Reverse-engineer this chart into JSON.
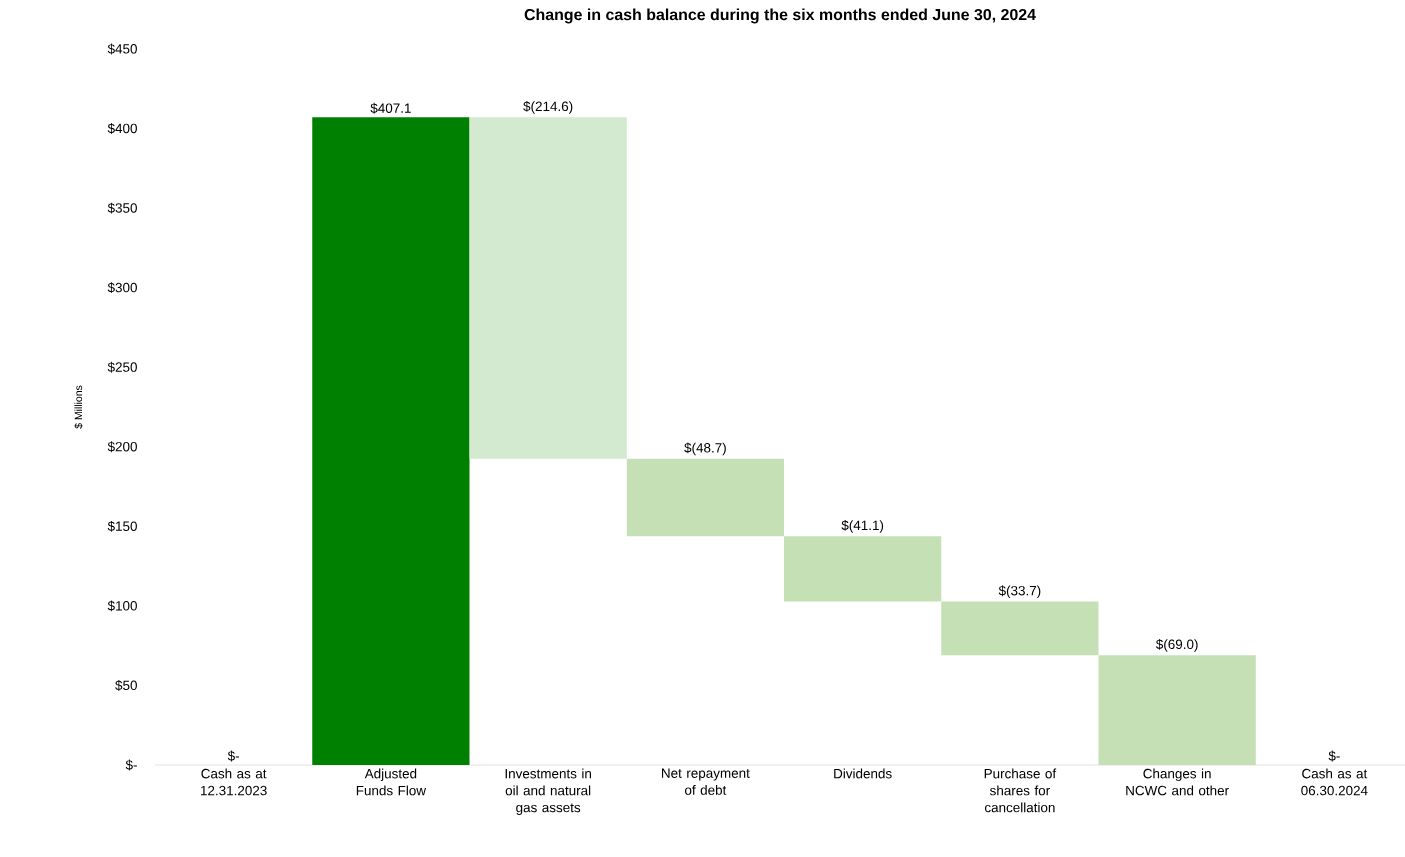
{
  "chart_data": {
    "type": "bar",
    "title": "Change in cash balance during the six months ended June 30, 2024",
    "ylabel": "$ Millions",
    "categories": [
      "Cash as at 12.31.2023",
      "Adjusted Funds Flow",
      "Investments in oil and natural gas assets",
      "Net repayment of debt",
      "Dividends",
      "Purchase of shares for cancellation",
      "Changes in NCWC and other",
      "Cash as at 06.30.2024"
    ],
    "values": [
      0,
      407.1,
      -214.6,
      -48.7,
      -41.1,
      -33.7,
      -69.0,
      0
    ],
    "base": [
      null,
      null,
      407.1,
      192.5,
      143.8,
      102.7,
      69.0,
      null
    ],
    "colors": [
      "#008000",
      "#008000",
      "#d3ead0",
      "#c5e0b4",
      "#c5e0b4",
      "#c5e0b4",
      "#c5e0b4",
      "#008000"
    ],
    "value_labels": [
      "$-",
      "$407.1",
      "$(214.6)",
      "$(48.7)",
      "$(41.1)",
      "$(33.7)",
      "$(69.0)",
      "$-"
    ],
    "ylim": [
      0,
      450
    ],
    "yticks": [
      {
        "value": 0,
        "label": "$-"
      },
      {
        "value": 50,
        "label": "$50"
      },
      {
        "value": 100,
        "label": "$100"
      },
      {
        "value": 150,
        "label": "$150"
      },
      {
        "value": 200,
        "label": "$200"
      },
      {
        "value": 250,
        "label": "$250"
      },
      {
        "value": 300,
        "label": "$300"
      },
      {
        "value": 350,
        "label": "$350"
      },
      {
        "value": 400,
        "label": "$400"
      },
      {
        "value": 450,
        "label": "$450"
      }
    ]
  }
}
